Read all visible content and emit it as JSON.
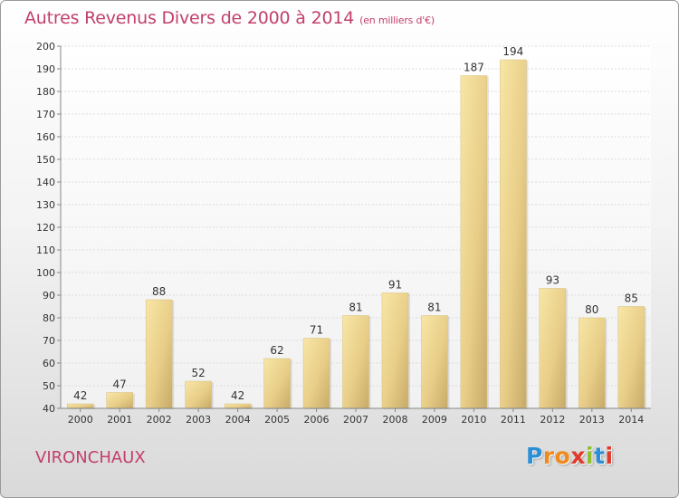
{
  "chart_data": {
    "type": "bar",
    "title": "Autres Revenus Divers de 2000 à 2014",
    "subtitle": "(en milliers d'€)",
    "categories": [
      "2000",
      "2001",
      "2002",
      "2003",
      "2004",
      "2005",
      "2006",
      "2007",
      "2008",
      "2009",
      "2010",
      "2011",
      "2012",
      "2013",
      "2014"
    ],
    "values": [
      42,
      47,
      88,
      52,
      42,
      62,
      71,
      81,
      91,
      81,
      187,
      194,
      93,
      80,
      85
    ],
    "ylim": [
      40,
      200
    ],
    "yticks": [
      40,
      50,
      60,
      70,
      80,
      90,
      100,
      110,
      120,
      130,
      140,
      150,
      160,
      170,
      180,
      190,
      200
    ],
    "grid": true,
    "colors": {
      "title": "#c2406a",
      "bar_light": "#f6de98",
      "bar_dark": "#c9ad6a"
    }
  },
  "location": "VIRONCHAUX",
  "brand": {
    "letters": [
      "P",
      "r",
      "o",
      "x",
      "i",
      "t",
      "i"
    ],
    "colors": [
      "#2b8fd6",
      "#f08a1c",
      "#f08a1c",
      "#e13a2c",
      "#8fbf2a",
      "#2b8fd6",
      "#e13a2c"
    ]
  }
}
